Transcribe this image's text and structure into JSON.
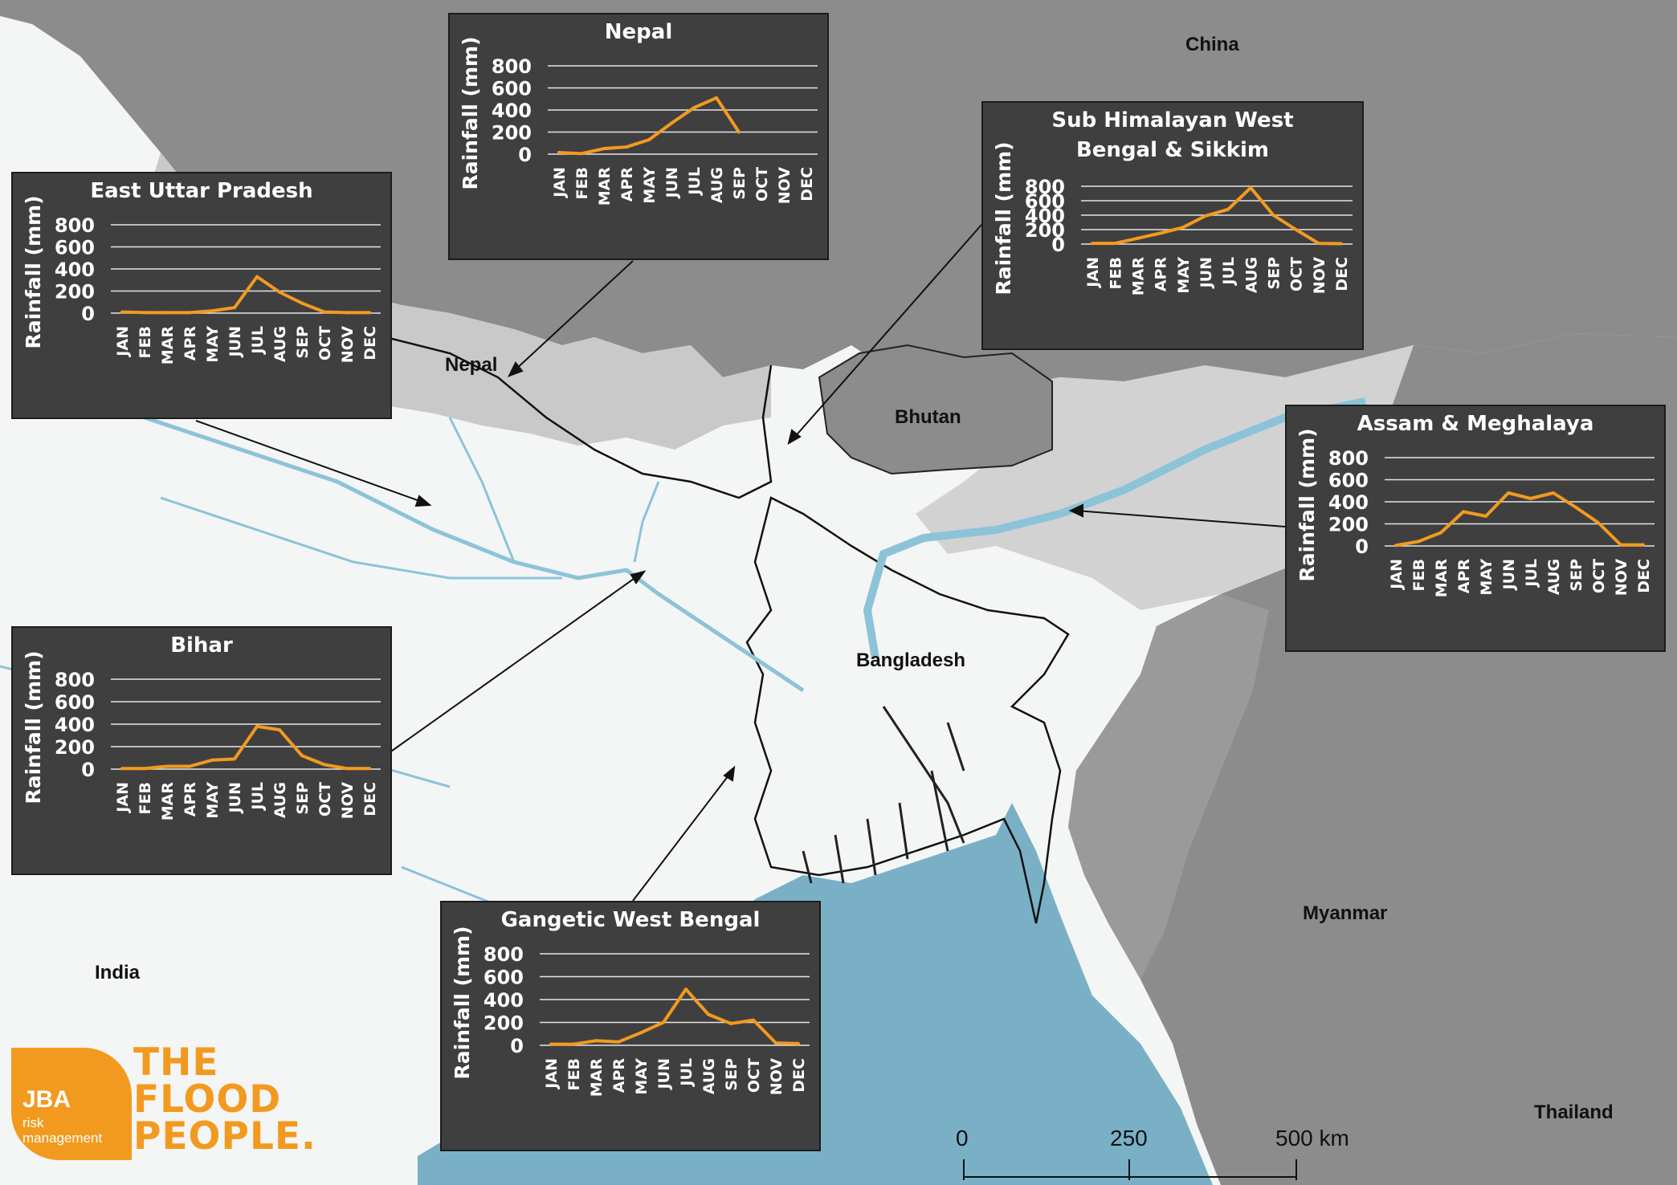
{
  "map": {
    "colors": {
      "land": "#f4f5f5",
      "other_countries": "#8c8c8c",
      "hills": "#c8c8c8",
      "sea": "#79b0c6",
      "river": "#8cc3d8",
      "chart_bg": "#3f3f40",
      "line": "#f29a1f"
    },
    "labels": {
      "china": "China",
      "nepal": "Nepal",
      "bhutan": "Bhutan",
      "bangladesh": "Bangladesh",
      "india": "India",
      "myanmar": "Myanmar",
      "thailand": "Thailand"
    },
    "scale_bar": {
      "ticks": [
        "0",
        "250",
        "500 km"
      ]
    }
  },
  "logo": {
    "jba": "JBA",
    "sub": "risk management",
    "slogan": [
      "THE",
      "FLOOD",
      "PEOPLE."
    ]
  },
  "chart_data": [
    {
      "type": "line",
      "title": "Nepal",
      "ylabel": "Rainfall (mm)",
      "xlabel": "",
      "categories": [
        "JAN",
        "FEB",
        "MAR",
        "APR",
        "MAY",
        "JUN",
        "JUL",
        "AUG",
        "SEP",
        "OCT",
        "NOV",
        "DEC"
      ],
      "yticks": [
        "0",
        "200",
        "400",
        "600",
        "800"
      ],
      "ylim": [
        0,
        800
      ],
      "grid": true,
      "values": [
        15,
        5,
        50,
        65,
        130,
        280,
        420,
        510,
        200,
        null,
        null,
        null
      ]
    },
    {
      "type": "line",
      "title": "East Uttar Pradesh",
      "ylabel": "Rainfall (mm)",
      "xlabel": "",
      "categories": [
        "JAN",
        "FEB",
        "MAR",
        "APR",
        "MAY",
        "JUN",
        "JUL",
        "AUG",
        "SEP",
        "OCT",
        "NOV",
        "DEC"
      ],
      "yticks": [
        "0",
        "200",
        "400",
        "600",
        "800"
      ],
      "ylim": [
        0,
        800
      ],
      "grid": true,
      "values": [
        10,
        5,
        5,
        5,
        20,
        50,
        330,
        190,
        90,
        10,
        5,
        5
      ]
    },
    {
      "type": "line",
      "title": "Sub Himalayan West Bengal & Sikkim",
      "ylabel": "Rainfall (mm)",
      "xlabel": "",
      "categories": [
        "JAN",
        "FEB",
        "MAR",
        "APR",
        "MAY",
        "JUN",
        "JUL",
        "AUG",
        "SEP",
        "OCT",
        "NOV",
        "DEC"
      ],
      "yticks": [
        "0",
        "200",
        "400",
        "600",
        "800"
      ],
      "ylim": [
        0,
        800
      ],
      "grid": true,
      "values": [
        10,
        10,
        80,
        150,
        230,
        390,
        480,
        780,
        400,
        200,
        10,
        5
      ]
    },
    {
      "type": "line",
      "title": "Assam & Meghalaya",
      "ylabel": "Rainfall (mm)",
      "xlabel": "",
      "categories": [
        "JAN",
        "FEB",
        "MAR",
        "APR",
        "MAY",
        "JUN",
        "JUL",
        "AUG",
        "SEP",
        "OCT",
        "NOV",
        "DEC"
      ],
      "yticks": [
        "0",
        "200",
        "400",
        "600",
        "800"
      ],
      "ylim": [
        0,
        800
      ],
      "grid": true,
      "values": [
        5,
        40,
        120,
        310,
        270,
        480,
        430,
        480,
        350,
        210,
        10,
        10
      ]
    },
    {
      "type": "line",
      "title": "Bihar",
      "ylabel": "Rainfall (mm)",
      "xlabel": "",
      "categories": [
        "JAN",
        "FEB",
        "MAR",
        "APR",
        "MAY",
        "JUN",
        "JUL",
        "AUG",
        "SEP",
        "OCT",
        "NOV",
        "DEC"
      ],
      "yticks": [
        "0",
        "200",
        "400",
        "600",
        "800"
      ],
      "ylim": [
        0,
        800
      ],
      "grid": true,
      "values": [
        5,
        5,
        25,
        25,
        80,
        90,
        380,
        350,
        120,
        40,
        5,
        5
      ]
    },
    {
      "type": "line",
      "title": "Gangetic West Bengal",
      "ylabel": "Rainfall (mm)",
      "xlabel": "",
      "categories": [
        "JAN",
        "FEB",
        "MAR",
        "APR",
        "MAY",
        "JUN",
        "JUL",
        "AUG",
        "SEP",
        "OCT",
        "NOV",
        "DEC"
      ],
      "yticks": [
        "0",
        "200",
        "400",
        "600",
        "800"
      ],
      "ylim": [
        0,
        800
      ],
      "grid": true,
      "values": [
        10,
        10,
        40,
        30,
        110,
        200,
        490,
        270,
        190,
        220,
        20,
        15
      ]
    }
  ]
}
